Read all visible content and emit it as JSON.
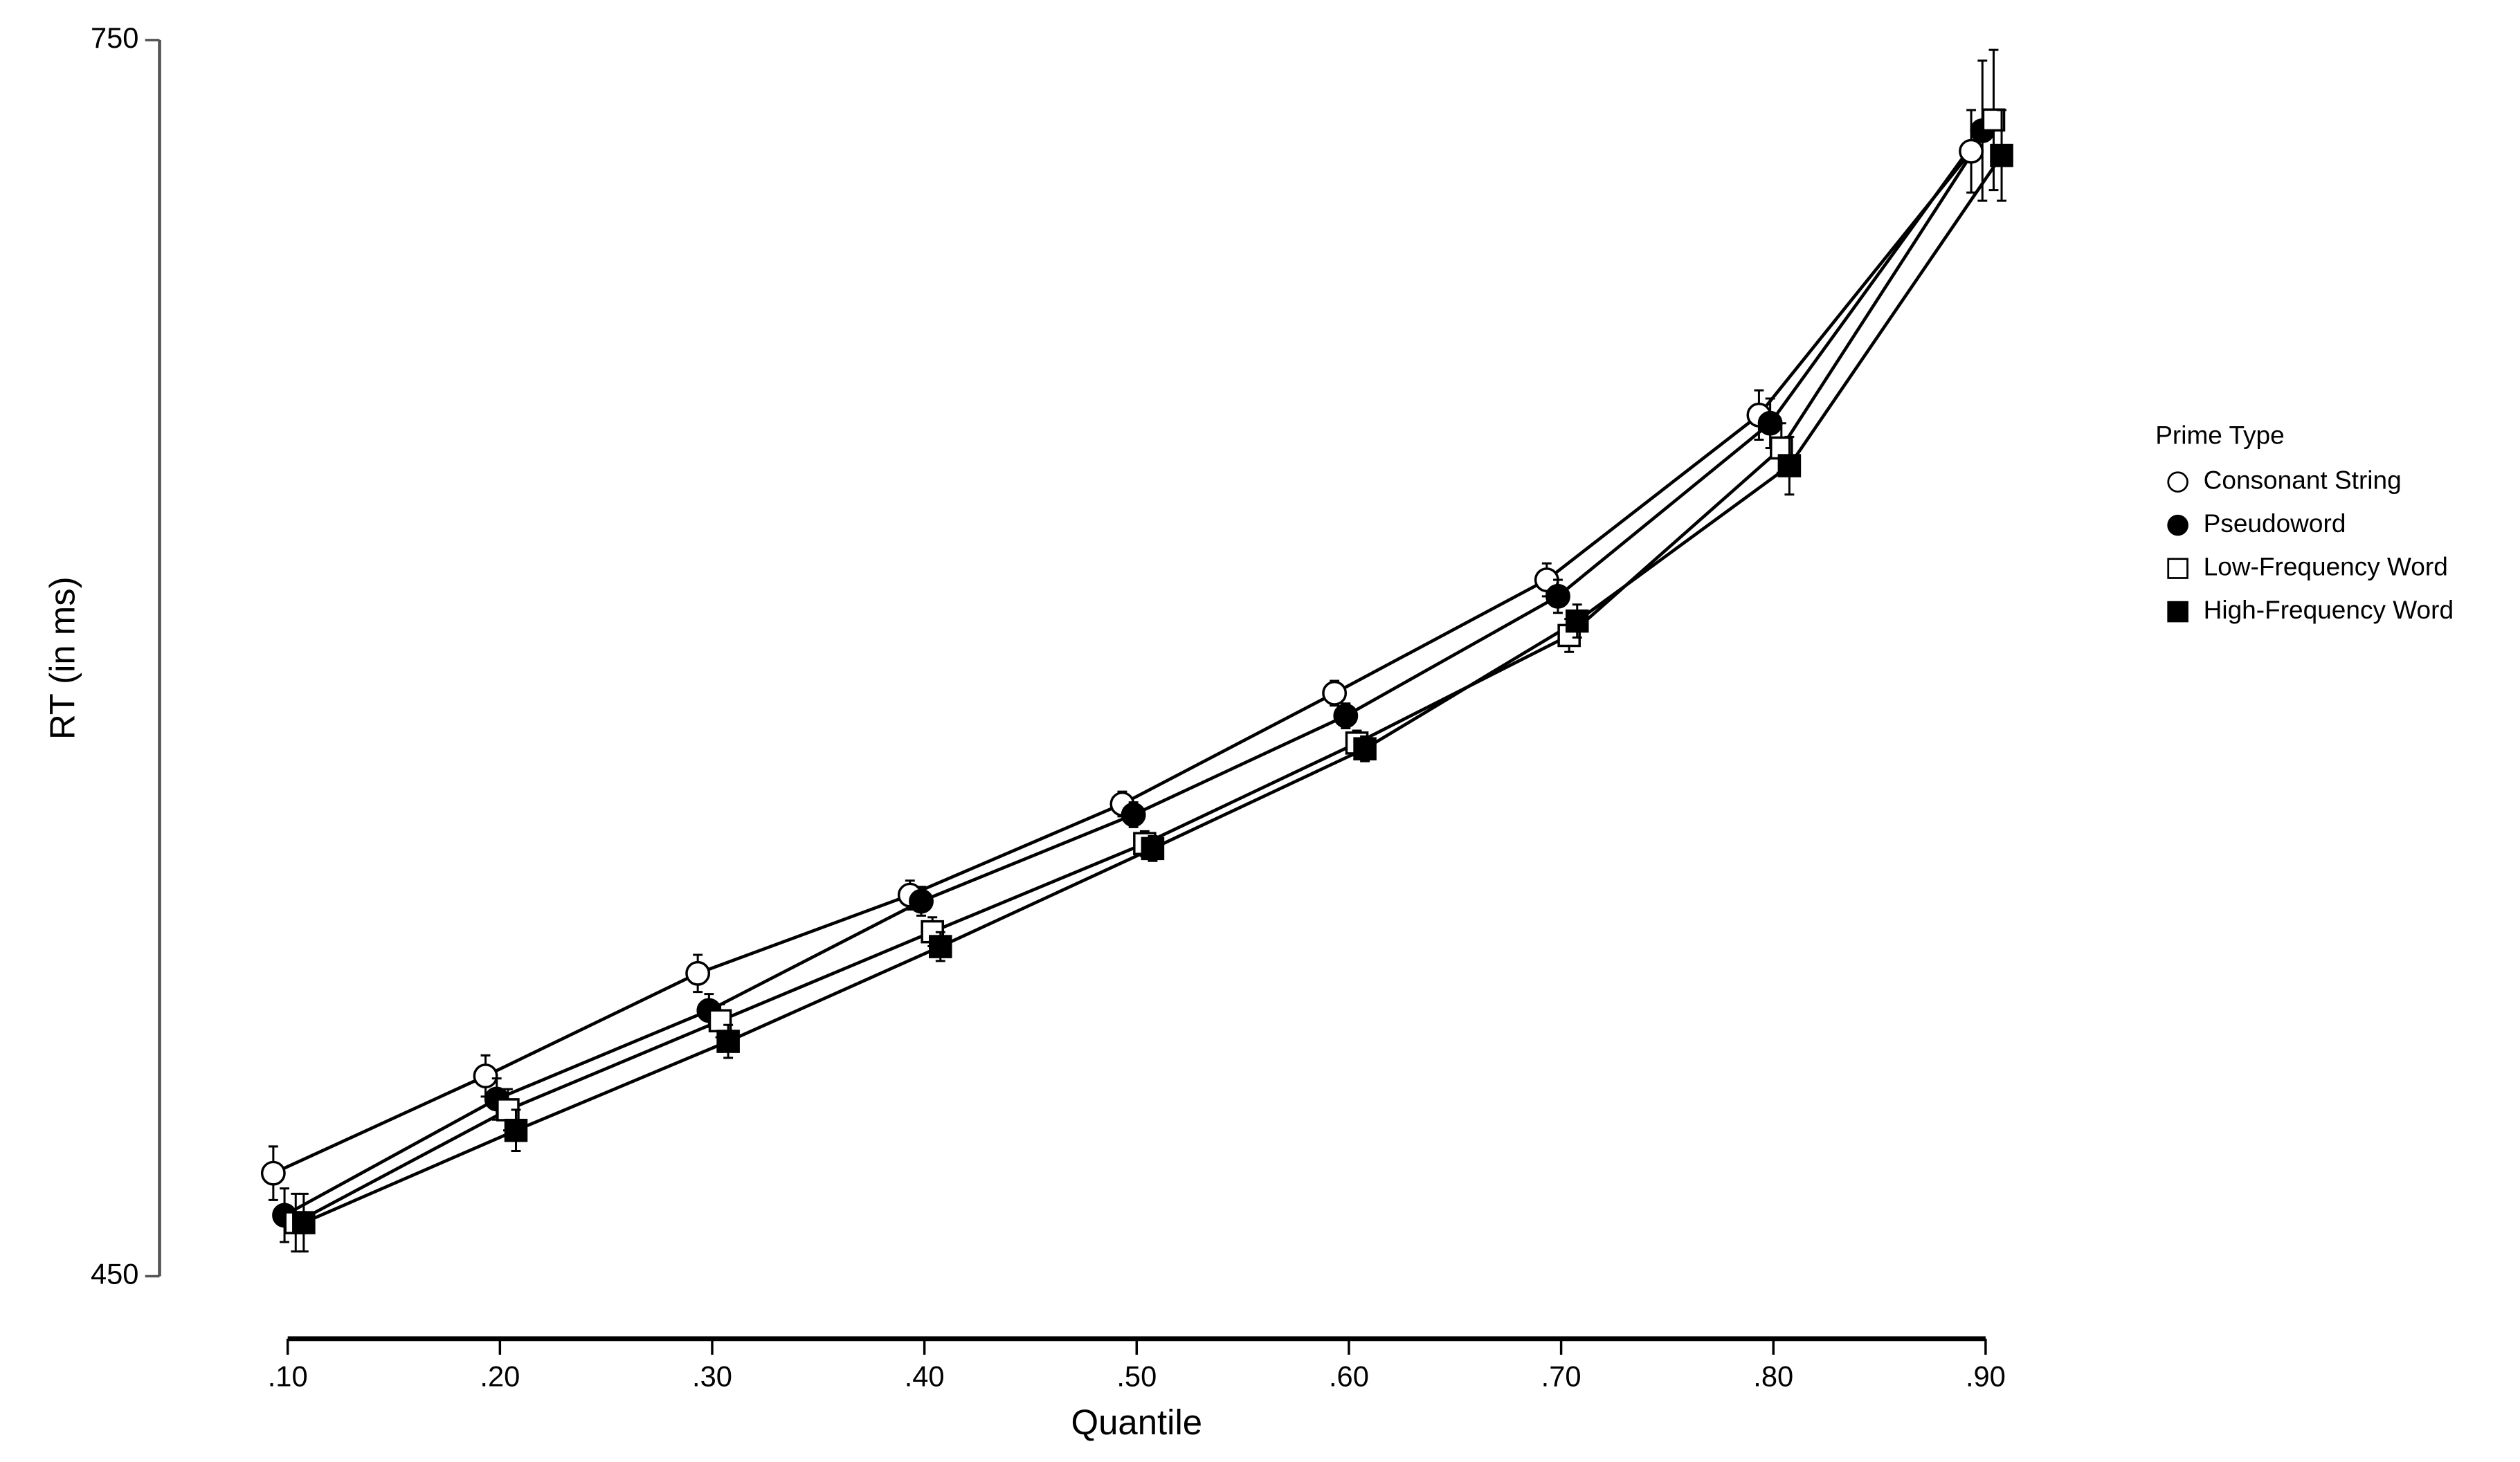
{
  "chart_data": {
    "type": "line",
    "y_label": "RT (in ms)",
    "x_label": "Quantile",
    "categories": [
      ".10",
      ".20",
      ".30",
      ".40",
      ".50",
      ".60",
      ".70",
      ".80",
      ".90"
    ],
    "ylim": [
      450,
      750
    ],
    "yticks": [
      450,
      750
    ],
    "legend_title": "Prime Type",
    "legend": "right",
    "series": [
      {
        "name": "Consonant String",
        "color": "#000000",
        "marker": "circle",
        "fill": "#ffffff",
        "values": [
          475,
          498.6,
          523.5,
          542.5,
          564.6,
          591.5,
          619,
          659,
          723
        ],
        "errors": [
          6.5,
          5,
          4.5,
          3.5,
          3,
          3,
          4,
          6,
          10
        ]
      },
      {
        "name": "Pseudoword",
        "color": "#000000",
        "marker": "circle",
        "fill": "#000000",
        "values": [
          464.8,
          493,
          514.5,
          541,
          562,
          586,
          615,
          657,
          728
        ],
        "errors": [
          6.5,
          5,
          4,
          3.5,
          3,
          3,
          4,
          6,
          17
        ]
      },
      {
        "name": "Low-Frequency Word",
        "color": "#000000",
        "marker": "square",
        "fill": "#ffffff",
        "values": [
          463,
          490.4,
          512,
          533.6,
          555,
          579.4,
          605.5,
          651,
          730.6
        ],
        "errors": [
          7,
          5,
          4,
          3.5,
          3,
          3,
          4,
          6,
          17
        ]
      },
      {
        "name": "High-Frequency Word",
        "color": "#000000",
        "marker": "square",
        "fill": "#000000",
        "values": [
          463,
          485.4,
          507,
          530,
          553.8,
          578,
          609,
          646.7,
          722
        ],
        "errors": [
          7,
          5,
          4,
          3.5,
          3,
          3,
          4,
          7,
          11
        ]
      }
    ]
  }
}
